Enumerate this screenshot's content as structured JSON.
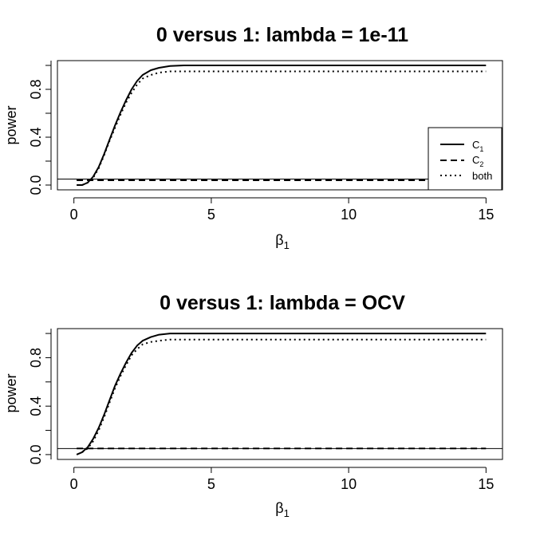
{
  "chart_data": [
    {
      "type": "line",
      "title": "0 versus 1: lambda = 1e-11",
      "xlabel_symbol": "β",
      "xlabel_sub": "1",
      "ylabel": "power",
      "xlim": [
        -0.6,
        15.6
      ],
      "ylim": [
        -0.04,
        1.04
      ],
      "xticks": [
        0,
        5,
        10,
        15
      ],
      "xtick_labels": [
        "0",
        "5",
        "10",
        "15"
      ],
      "yticks": [
        0.0,
        0.4,
        0.8
      ],
      "ytick_labels": [
        "0.0",
        "0.4",
        "0.8"
      ],
      "reference_line": {
        "y": 0.05
      },
      "legend": {
        "position": "right",
        "entries": [
          {
            "label_main": "C",
            "label_sub": "1",
            "style": "solid"
          },
          {
            "label_main": "C",
            "label_sub": "2",
            "style": "dashed"
          },
          {
            "label_main": "both",
            "label_sub": "",
            "style": "dotted"
          }
        ]
      },
      "series": [
        {
          "name": "C1",
          "style": "solid",
          "x": [
            0.1,
            0.3,
            0.5,
            0.7,
            0.9,
            1.1,
            1.3,
            1.5,
            1.7,
            1.9,
            2.1,
            2.3,
            2.5,
            2.8,
            3.1,
            3.5,
            4.0,
            6.0,
            10.0,
            15.0
          ],
          "y": [
            0.0,
            0.0,
            0.02,
            0.07,
            0.15,
            0.26,
            0.38,
            0.5,
            0.61,
            0.71,
            0.8,
            0.87,
            0.92,
            0.96,
            0.98,
            0.995,
            1.0,
            1.0,
            1.0,
            1.0
          ]
        },
        {
          "name": "C2",
          "style": "dashed",
          "x": [
            0.1,
            0.5,
            1.0,
            2.0,
            4.0,
            8.0,
            12.0,
            15.0
          ],
          "y": [
            0.04,
            0.04,
            0.04,
            0.04,
            0.04,
            0.04,
            0.04,
            0.04
          ]
        },
        {
          "name": "both",
          "style": "dotted",
          "x": [
            0.3,
            0.5,
            0.7,
            0.9,
            1.1,
            1.3,
            1.5,
            1.7,
            1.9,
            2.1,
            2.3,
            2.5,
            2.8,
            3.1,
            3.5,
            4.0,
            6.0,
            10.0,
            15.0
          ],
          "y": [
            0.0,
            0.02,
            0.06,
            0.14,
            0.25,
            0.37,
            0.48,
            0.59,
            0.69,
            0.77,
            0.84,
            0.89,
            0.92,
            0.94,
            0.95,
            0.95,
            0.95,
            0.95,
            0.95
          ]
        }
      ]
    },
    {
      "type": "line",
      "title": "0 versus 1: lambda = OCV",
      "xlabel_symbol": "β",
      "xlabel_sub": "1",
      "ylabel": "power",
      "xlim": [
        -0.6,
        15.6
      ],
      "ylim": [
        -0.04,
        1.04
      ],
      "xticks": [
        0,
        5,
        10,
        15
      ],
      "xtick_labels": [
        "0",
        "5",
        "10",
        "15"
      ],
      "yticks": [
        0.0,
        0.4,
        0.8
      ],
      "ytick_labels": [
        "0.0",
        "0.4",
        "0.8"
      ],
      "reference_line": {
        "y": 0.05
      },
      "series": [
        {
          "name": "C1",
          "style": "solid",
          "x": [
            0.1,
            0.3,
            0.5,
            0.7,
            0.9,
            1.1,
            1.3,
            1.5,
            1.7,
            1.9,
            2.1,
            2.3,
            2.5,
            2.8,
            3.1,
            3.5,
            4.0,
            6.0,
            10.0,
            15.0
          ],
          "y": [
            0.0,
            0.02,
            0.06,
            0.13,
            0.22,
            0.33,
            0.45,
            0.57,
            0.67,
            0.76,
            0.84,
            0.9,
            0.94,
            0.97,
            0.99,
            1.0,
            1.0,
            1.0,
            1.0,
            1.0
          ]
        },
        {
          "name": "C2",
          "style": "dashed",
          "x": [
            0.1,
            0.5,
            1.0,
            2.0,
            4.0,
            8.0,
            12.0,
            15.0
          ],
          "y": [
            0.05,
            0.05,
            0.05,
            0.05,
            0.05,
            0.05,
            0.05,
            0.05
          ]
        },
        {
          "name": "both",
          "style": "dotted",
          "x": [
            0.3,
            0.5,
            0.7,
            0.9,
            1.1,
            1.3,
            1.5,
            1.7,
            1.9,
            2.1,
            2.3,
            2.5,
            2.8,
            3.1,
            3.5,
            4.0,
            6.0,
            10.0,
            15.0
          ],
          "y": [
            0.02,
            0.05,
            0.11,
            0.2,
            0.31,
            0.43,
            0.55,
            0.65,
            0.74,
            0.82,
            0.87,
            0.91,
            0.93,
            0.94,
            0.95,
            0.95,
            0.95,
            0.95,
            0.95
          ]
        }
      ]
    }
  ]
}
